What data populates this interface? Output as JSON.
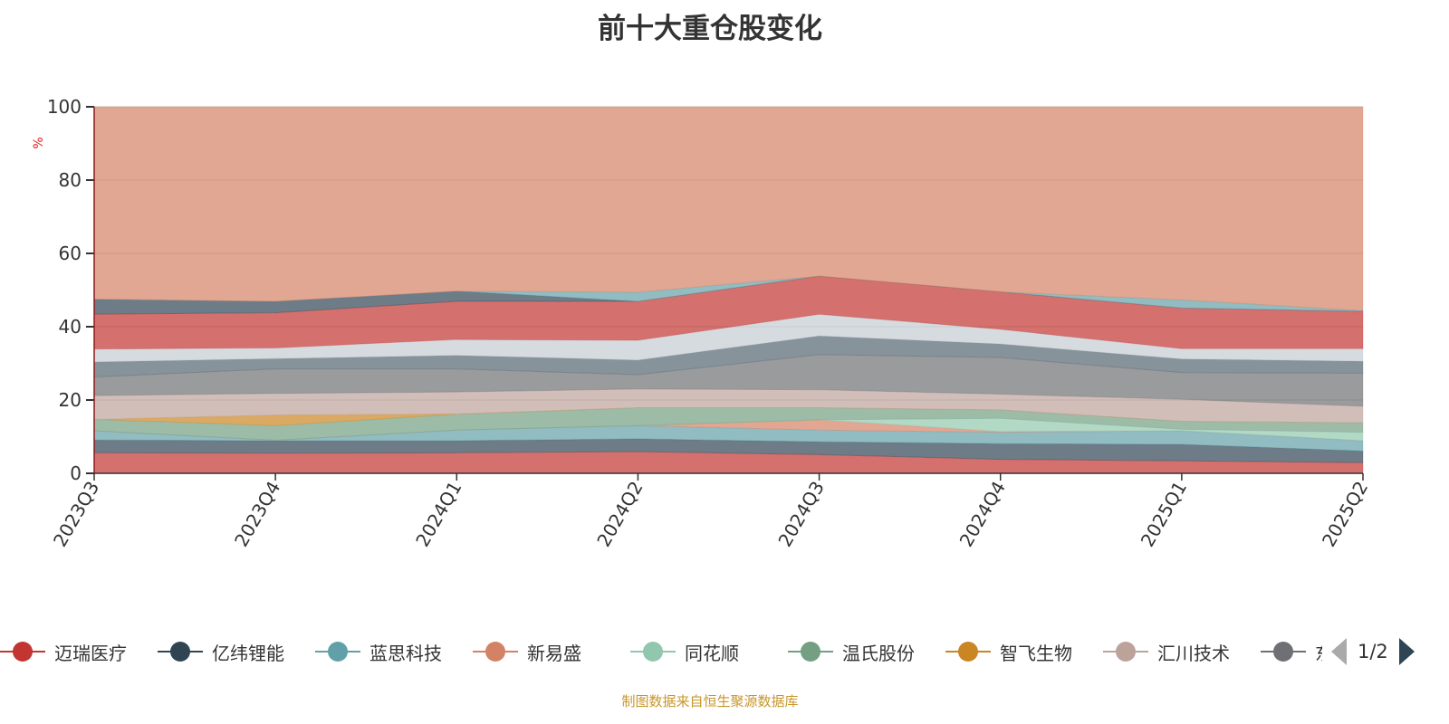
{
  "chart_data": {
    "type": "area",
    "stacked": true,
    "title": "前十大重仓股变化",
    "ylabel": "%",
    "ylim": [
      0,
      100
    ],
    "yticks": [
      0,
      20,
      40,
      60,
      80,
      100
    ],
    "grid": true,
    "legend_position": "bottom",
    "categories": [
      "2023Q3",
      "2023Q4",
      "2024Q1",
      "2024Q2",
      "2024Q3",
      "2024Q4",
      "2025Q1",
      "2025Q2"
    ],
    "series": [
      {
        "name": "迈瑞医疗",
        "color": "#c23531",
        "values": [
          5.6,
          5.5,
          5.6,
          5.9,
          5.1,
          3.8,
          3.4,
          2.9
        ]
      },
      {
        "name": "亿纬锂能",
        "color": "#2f4554",
        "values": [
          3.5,
          3.4,
          3.3,
          3.5,
          3.5,
          4.3,
          4.5,
          3.2
        ]
      },
      {
        "name": "蓝思科技",
        "color": "#61a0a8",
        "values": [
          2.5,
          0.1,
          2.9,
          3.6,
          3.2,
          3.1,
          3.7,
          2.8
        ]
      },
      {
        "name": "新易盛",
        "color": "#d48265",
        "values": [
          0,
          0,
          0,
          0,
          2.8,
          0.2,
          0,
          0
        ]
      },
      {
        "name": "同花顺",
        "color": "#91c7ae",
        "values": [
          0,
          0,
          0,
          0,
          0,
          3.6,
          0.4,
          2.3
        ]
      },
      {
        "name": "温氏股份",
        "color": "#749f83",
        "values": [
          3.1,
          4.0,
          4.3,
          4.9,
          3.3,
          2.3,
          2.2,
          2.6
        ]
      },
      {
        "name": "智飞生物",
        "color": "#ca8622",
        "values": [
          0,
          2.9,
          0.1,
          0,
          0,
          0,
          0,
          0
        ]
      },
      {
        "name": "汇川技术",
        "color": "#bda29a",
        "values": [
          6.5,
          5.9,
          6.0,
          5.1,
          4.9,
          4.3,
          6.0,
          4.5
        ]
      },
      {
        "name": "东方财富",
        "color": "#6e7074",
        "values": [
          5.1,
          6.7,
          6.3,
          3.9,
          9.6,
          10.0,
          7.3,
          9.0
        ]
      },
      {
        "color": "#546570",
        "values": [
          4.1,
          2.8,
          3.7,
          4.0,
          5.1,
          3.7,
          3.7,
          3.3
        ]
      },
      {
        "color": "#c4ccd3",
        "values": [
          3.5,
          2.9,
          4.3,
          5.4,
          5.9,
          4.0,
          2.8,
          3.4
        ]
      },
      {
        "color": "#c23531",
        "values": [
          9.5,
          9.6,
          10.4,
          10.6,
          10.4,
          10.2,
          11.1,
          10.2
        ]
      },
      {
        "color": "#2f4554",
        "values": [
          4.1,
          3.1,
          2.8,
          0,
          0,
          0,
          0,
          0
        ]
      },
      {
        "color": "#61a0a8",
        "values": [
          0,
          0,
          0,
          2.5,
          0,
          0,
          2.2,
          0.2
        ]
      },
      {
        "color": "#d48265",
        "values": [
          52.5,
          53.1,
          50.3,
          50.6,
          46.2,
          50.5,
          52.7,
          55.6
        ]
      }
    ]
  },
  "legend": {
    "page": "1/2"
  },
  "footer": "制图数据来自恒生聚源数据库"
}
